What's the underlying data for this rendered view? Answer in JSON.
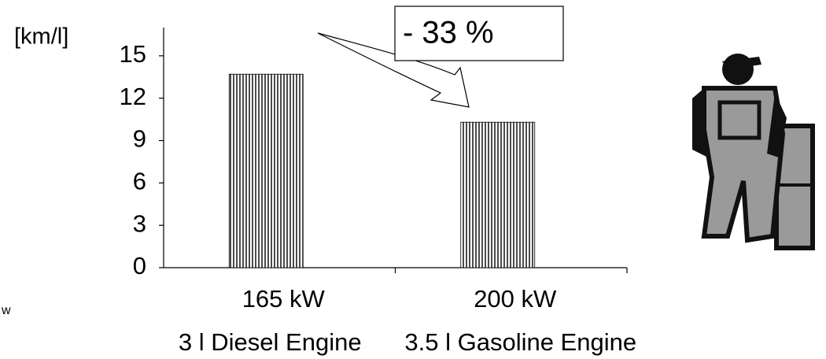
{
  "chart_data": {
    "type": "bar",
    "y_label": "[km/l]",
    "categories": [
      "165 kW",
      "200 kW"
    ],
    "category_sublabels": [
      "3 l Diesel Engine",
      "3.5 l Gasoline Engine"
    ],
    "values": [
      13.7,
      10.3
    ],
    "color": "#000000",
    "ylim": [
      0,
      17
    ],
    "yticks": [
      0,
      3,
      6,
      9,
      12,
      15
    ],
    "annotation": "- 33 %",
    "fragment": "w"
  }
}
